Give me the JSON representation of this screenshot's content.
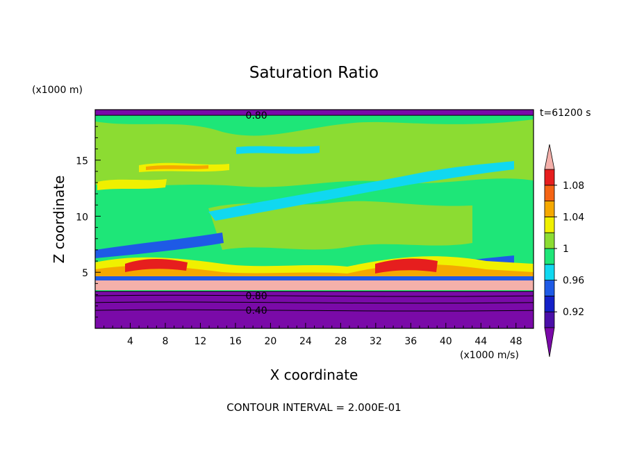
{
  "chart_data": {
    "type": "heatmap",
    "title": "Saturation Ratio",
    "xlabel": "X coordinate",
    "ylabel": "Z coordinate",
    "x_unit_label": "(x1000 m/s)",
    "y_unit_label": "(x1000 m)",
    "time_label": "t=61200 s",
    "footer": "CONTOUR INTERVAL = 2.000E-01",
    "xlim": [
      0,
      50
    ],
    "ylim": [
      0,
      19.5
    ],
    "x_ticks": [
      "4",
      "8",
      "12",
      "16",
      "20",
      "24",
      "28",
      "32",
      "36",
      "40",
      "44",
      "48"
    ],
    "x_tick_values": [
      4,
      8,
      12,
      16,
      20,
      24,
      28,
      32,
      36,
      40,
      44,
      48
    ],
    "y_ticks": [
      "5",
      "10",
      "15"
    ],
    "y_tick_values": [
      5,
      10,
      15
    ],
    "contour_labels": [
      {
        "text": "0.80",
        "x": 17,
        "y": 19.0
      },
      {
        "text": "0.80",
        "x": 17,
        "y": 2.9
      },
      {
        "text": "0.40",
        "x": 17,
        "y": 1.6
      }
    ],
    "colorbar": {
      "labels": [
        "0.92",
        "0.96",
        "1",
        "1.04",
        "1.08"
      ],
      "label_values": [
        0.92,
        0.96,
        1.0,
        1.04,
        1.08
      ],
      "levels": [
        0.9,
        0.92,
        0.94,
        0.96,
        0.98,
        1.0,
        1.02,
        1.04,
        1.06,
        1.08,
        1.1
      ],
      "under_color": "#7a0aa8",
      "over_color": "#f4b0aa",
      "colors": [
        "#4b0fa8",
        "#1420c8",
        "#1e5ae6",
        "#10d8f0",
        "#1ee678",
        "#8cdc32",
        "#f0f000",
        "#f5a800",
        "#f56414",
        "#e61e1e"
      ]
    },
    "colors": {
      "purple": "#7a0aa8",
      "green": "#1ee678",
      "light_green": "#8cdc32",
      "cyan": "#10d8f0",
      "blue": "#1e5ae6",
      "yellow": "#f0f000",
      "orange": "#f5a800",
      "red": "#e61e1e",
      "pink": "#f4b0aa"
    }
  }
}
